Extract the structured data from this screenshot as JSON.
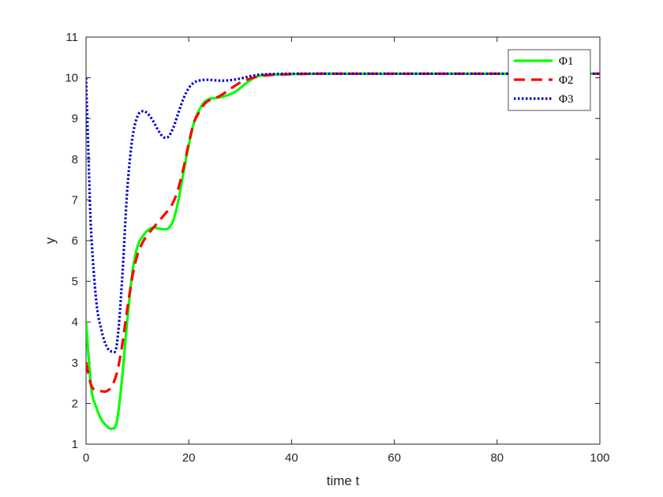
{
  "chart_data": {
    "type": "line",
    "xlabel": "time t",
    "ylabel": "y",
    "xlim": [
      0,
      100
    ],
    "ylim": [
      1,
      11
    ],
    "xticks": [
      "0",
      "20",
      "40",
      "60",
      "80",
      "100"
    ],
    "yticks": [
      "1",
      "2",
      "3",
      "4",
      "5",
      "6",
      "7",
      "8",
      "9",
      "10",
      "11"
    ],
    "grid": false,
    "legend_position": "top-right",
    "series": [
      {
        "name": "Φ1",
        "color": "#00ff00",
        "style": "solid",
        "x": [
          0,
          1,
          2,
          3,
          4,
          5,
          6,
          7,
          8,
          9,
          10,
          11,
          12,
          13,
          14,
          15,
          16,
          17,
          18,
          19,
          20,
          21,
          22,
          23,
          24,
          25,
          27,
          29,
          31,
          33,
          35,
          37,
          40,
          45,
          50,
          60,
          70,
          80,
          90,
          100
        ],
        "y": [
          4.0,
          2.4,
          1.9,
          1.6,
          1.45,
          1.38,
          1.55,
          2.6,
          4.0,
          5.2,
          5.85,
          6.1,
          6.25,
          6.32,
          6.3,
          6.28,
          6.3,
          6.5,
          7.0,
          7.7,
          8.35,
          8.9,
          9.2,
          9.4,
          9.48,
          9.5,
          9.55,
          9.65,
          9.85,
          10.02,
          10.07,
          10.08,
          10.09,
          10.1,
          10.1,
          10.1,
          10.1,
          10.1,
          10.1,
          10.1
        ]
      },
      {
        "name": "Φ2",
        "color": "#ff0000",
        "style": "dashed",
        "x": [
          0,
          1,
          2,
          3,
          4,
          5,
          6,
          7,
          8,
          9,
          10,
          11,
          12,
          13,
          14,
          15,
          16,
          17,
          18,
          19,
          20,
          21,
          22,
          23,
          24,
          26,
          28,
          30,
          32,
          34,
          36,
          40,
          45,
          50,
          60,
          70,
          80,
          90,
          100
        ],
        "y": [
          3.0,
          2.45,
          2.32,
          2.3,
          2.3,
          2.42,
          2.75,
          3.4,
          4.3,
          5.1,
          5.65,
          5.95,
          6.15,
          6.3,
          6.45,
          6.6,
          6.75,
          6.95,
          7.3,
          7.8,
          8.4,
          8.9,
          9.15,
          9.35,
          9.45,
          9.55,
          9.72,
          9.88,
          9.98,
          10.04,
          10.07,
          10.09,
          10.1,
          10.1,
          10.1,
          10.1,
          10.1,
          10.1,
          10.1
        ]
      },
      {
        "name": "Φ3",
        "color": "#0000cd",
        "style": "dotted",
        "x": [
          0,
          0.5,
          1,
          2,
          3,
          4,
          5,
          6,
          7,
          8,
          9,
          10,
          11,
          12,
          13,
          14,
          15,
          16,
          17,
          18,
          19,
          20,
          21,
          22,
          23,
          24,
          26,
          28,
          30,
          32,
          34,
          36,
          40,
          45,
          50,
          60,
          70,
          80,
          90,
          100
        ],
        "y": [
          10.0,
          8.0,
          6.2,
          4.5,
          3.8,
          3.4,
          3.28,
          3.45,
          5.0,
          7.2,
          8.5,
          9.05,
          9.18,
          9.12,
          8.95,
          8.72,
          8.55,
          8.55,
          8.78,
          9.15,
          9.5,
          9.75,
          9.88,
          9.93,
          9.95,
          9.95,
          9.93,
          9.94,
          9.98,
          10.04,
          10.08,
          10.09,
          10.1,
          10.1,
          10.1,
          10.1,
          10.1,
          10.1,
          10.1,
          10.1
        ]
      }
    ]
  }
}
